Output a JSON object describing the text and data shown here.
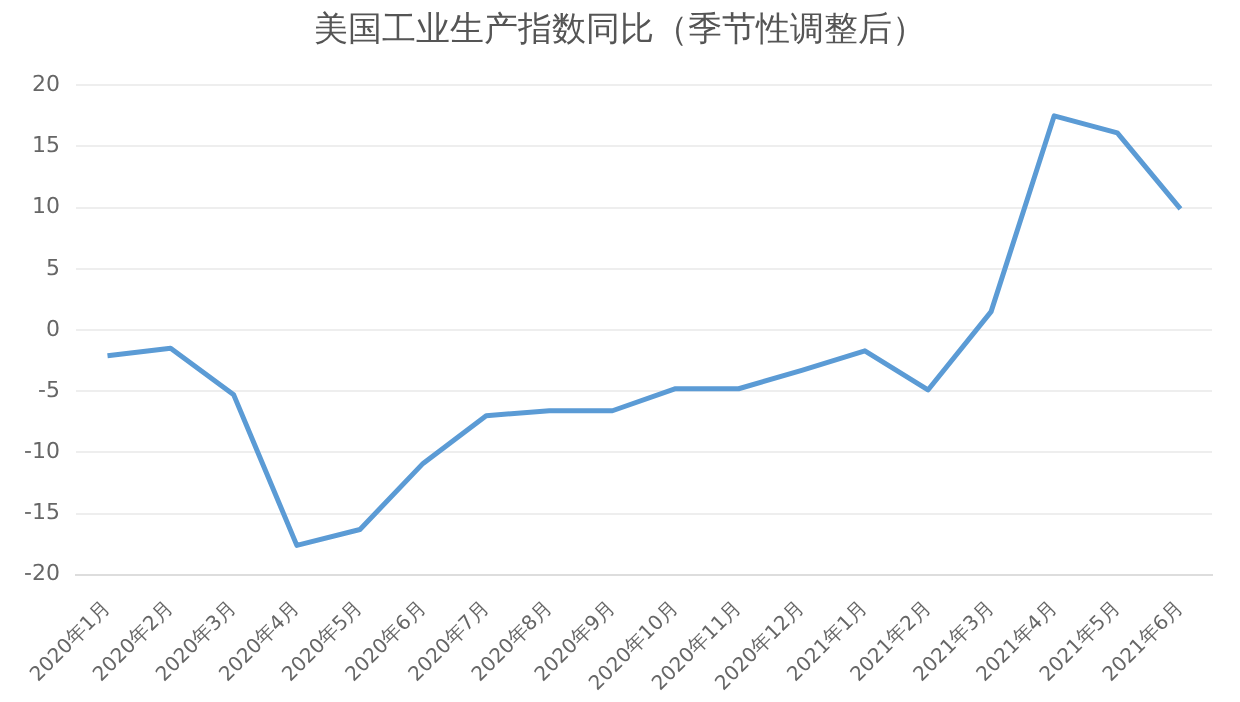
{
  "chart_data": {
    "type": "line",
    "title": "美国工业生产指数同比（季节性调整后）",
    "categories": [
      "2020年1月",
      "2020年2月",
      "2020年3月",
      "2020年4月",
      "2020年5月",
      "2020年6月",
      "2020年7月",
      "2020年8月",
      "2020年9月",
      "2020年10月",
      "2020年11月",
      "2020年12月",
      "2021年1月",
      "2021年2月",
      "2021年3月",
      "2021年4月",
      "2021年5月",
      "2021年6月"
    ],
    "series": [
      {
        "color": "#5b9bd5",
        "values": [
          -2.1,
          -1.5,
          -5.3,
          -17.6,
          -16.3,
          -10.9,
          -7,
          -6.6,
          -6.6,
          -4.8,
          -4.8,
          -3.3,
          -1.7,
          -4.9,
          1.5,
          17.5,
          16.1,
          9.9
        ]
      }
    ],
    "ylim": [
      -20,
      20
    ],
    "yticks": [
      -20,
      -15,
      -10,
      -5,
      0,
      5,
      10,
      15,
      20
    ],
    "grid": "y",
    "legend": false,
    "marker": "none",
    "line_style": "solid"
  }
}
